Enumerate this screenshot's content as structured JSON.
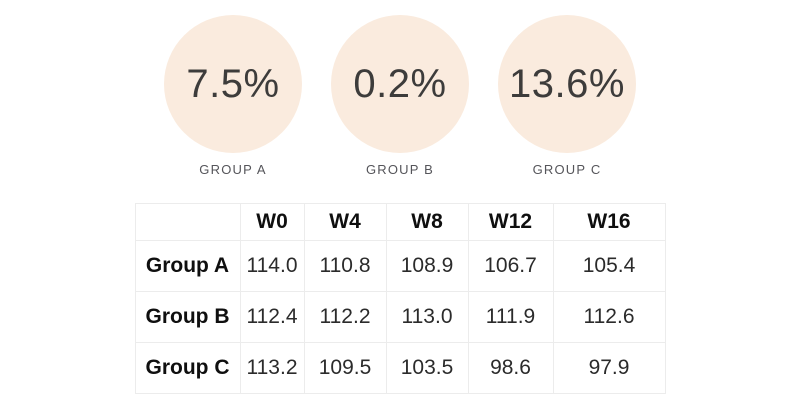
{
  "kpis": [
    {
      "value": "7.5%",
      "label": "GROUP A"
    },
    {
      "value": "0.2%",
      "label": "GROUP B"
    },
    {
      "value": "13.6%",
      "label": "GROUP C"
    }
  ],
  "table": {
    "columns": [
      "",
      "W0",
      "W4",
      "W8",
      "W12",
      "W16"
    ],
    "rows": [
      {
        "label": "Group A",
        "values": [
          "114.0",
          "110.8",
          "108.9",
          "106.7",
          "105.4"
        ]
      },
      {
        "label": "Group B",
        "values": [
          "112.4",
          "112.2",
          "113.0",
          "111.9",
          "112.6"
        ]
      },
      {
        "label": "Group C",
        "values": [
          "113.2",
          "109.5",
          "103.5",
          "98.6",
          "97.9"
        ]
      }
    ]
  },
  "colors": {
    "circle_fill": "#FAEBDE",
    "kpi_value_text": "#3D3C3B",
    "kpi_label_text": "#55555A",
    "table_border": "#ECECEC",
    "table_header_text": "#0F0F0F",
    "table_cell_text": "#2B2B2B"
  },
  "chart_data": {
    "type": "table",
    "title": "",
    "categories": [
      "W0",
      "W4",
      "W8",
      "W12",
      "W16"
    ],
    "series": [
      {
        "name": "Group A",
        "values": [
          114.0,
          110.8,
          108.9,
          106.7,
          105.4
        ]
      },
      {
        "name": "Group B",
        "values": [
          112.4,
          112.2,
          113.0,
          111.9,
          112.6
        ]
      },
      {
        "name": "Group C",
        "values": [
          113.2,
          109.5,
          103.5,
          98.6,
          97.9
        ]
      }
    ],
    "kpi_badges": [
      {
        "label": "GROUP A",
        "value_pct": 7.5
      },
      {
        "label": "GROUP B",
        "value_pct": 0.2
      },
      {
        "label": "GROUP C",
        "value_pct": 13.6
      }
    ],
    "legend_position": "none",
    "grid": "table-borders"
  }
}
